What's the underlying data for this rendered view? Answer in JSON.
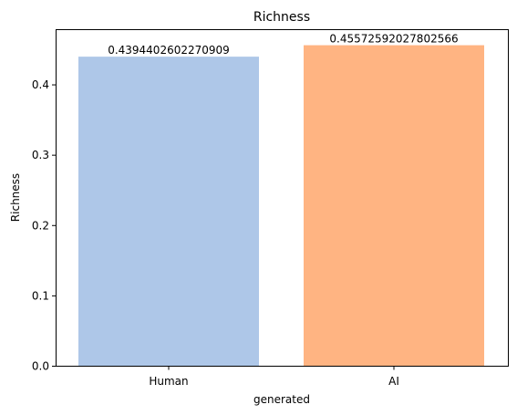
{
  "chart_data": {
    "type": "bar",
    "title": "Richness",
    "xlabel": "generated",
    "ylabel": "Richness",
    "categories": [
      "Human",
      "AI"
    ],
    "values": [
      0.4394402602270909,
      0.45572592027802566
    ],
    "value_labels": [
      "0.4394402602270909",
      "0.45572592027802566"
    ],
    "colors": [
      "#aec7e8",
      "#ffb482"
    ],
    "ylim": [
      0,
      0.478513
    ],
    "yticks": [
      0.0,
      0.1,
      0.2,
      0.3,
      0.4
    ],
    "ytick_labels": [
      "0.0",
      "0.1",
      "0.2",
      "0.3",
      "0.4"
    ],
    "grid": false,
    "legend": "none"
  }
}
